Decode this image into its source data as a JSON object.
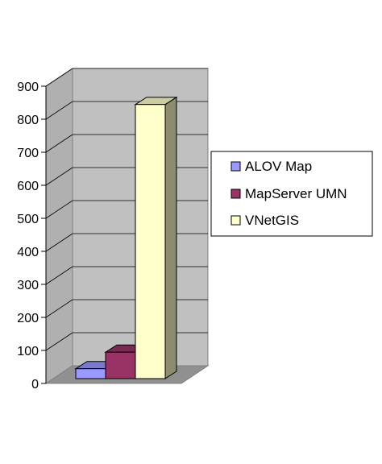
{
  "chart_data": {
    "type": "bar",
    "series": [
      {
        "name": "ALOV Map",
        "values": [
          30
        ],
        "color": "#9999FF"
      },
      {
        "name": "MapServer UMN",
        "values": [
          80
        ],
        "color": "#993366"
      },
      {
        "name": "VNetGIS",
        "values": [
          830
        ],
        "color": "#FFFFCC"
      }
    ],
    "ylim": [
      0,
      900
    ],
    "yticks": [
      "0",
      "100",
      "200",
      "300",
      "400",
      "500",
      "600",
      "700",
      "800",
      "900"
    ],
    "grid": true,
    "legend": "right",
    "style_3d": true,
    "wall_color": "#C0C0C0"
  }
}
